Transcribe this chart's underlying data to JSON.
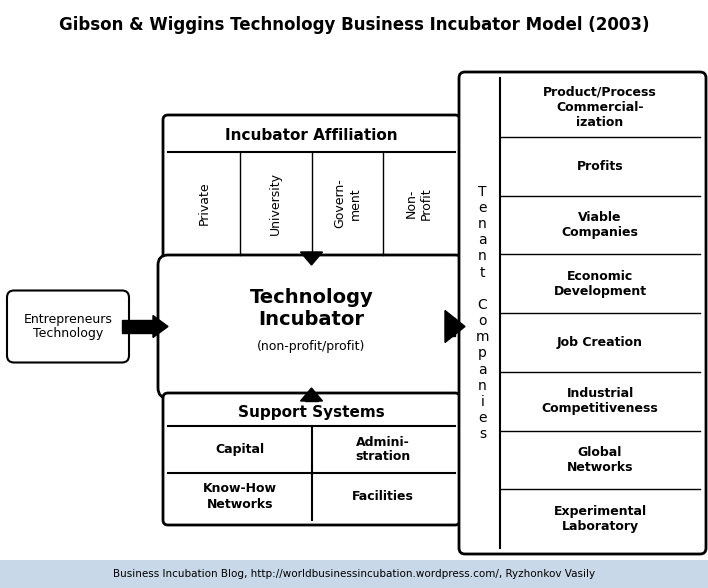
{
  "title": "Gibson & Wiggins Technology Business Incubator Model (2003)",
  "footer": "Business Incubation Blog, http://worldbusinessincubation.wordpress.com/, Ryzhonkov Vasily",
  "bg_color": "#ffffff",
  "footer_bg": "#c8d8e8",
  "incubator_affiliation_label": "Incubator Affiliation",
  "affiliation_items": [
    "Private",
    "University",
    "Govern-\nment",
    "Non-\nProfit"
  ],
  "tech_incubator_label": "Technology\nIncubator",
  "tech_incubator_sub": "(non-profit/profit)",
  "entrepreneurs_label": "Entrepreneurs\nTechnology",
  "support_systems_label": "Support Systems",
  "support_items": [
    [
      "Capital",
      "Admini-\nstration"
    ],
    [
      "Know-How\nNetworks",
      "Facilities"
    ]
  ],
  "tenant_label": "T\ne\nn\na\nn\nt\n\nC\no\nm\np\na\nn\ni\ne\ns",
  "outcomes": [
    "Product/Process\nCommercial-\nization",
    "Profits",
    "Viable\nCompanies",
    "Economic\nDevelopment",
    "Job Creation",
    "Industrial\nCompetitiveness",
    "Global\nNetworks",
    "Experimental\nLaboratory"
  ]
}
